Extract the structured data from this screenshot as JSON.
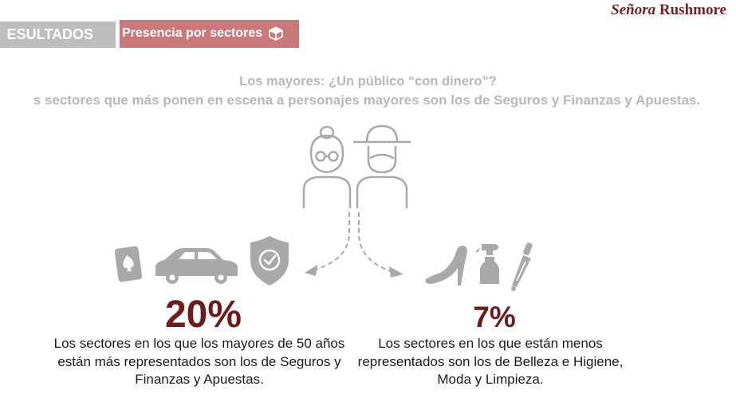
{
  "brand": {
    "part1": "Señora",
    "part2": " Rushmore"
  },
  "tabs": {
    "results_label": "ESULTADOS",
    "sectors_label": "Presencia por sectores"
  },
  "headline": {
    "title": "Los mayores: ¿Un público “con dinero”?",
    "subtitle": "s sectores que más ponen en escena a personajes mayores son los de Seguros y Finanzas y Apuestas."
  },
  "stats": {
    "left": {
      "value": "20%",
      "description": "Los sectores en los que los mayores de 50 años están más representados son los de Seguros y Finanzas y Apuestas."
    },
    "right": {
      "value": "7%",
      "description": "Los sectores en los que están menos representados son los de Belleza e Higiene, Moda y Limpieza."
    }
  },
  "icons": {
    "people": [
      "grandmother-icon",
      "grandfather-icon"
    ],
    "left": [
      "playing-card-icon",
      "car-icon",
      "shield-check-icon"
    ],
    "right": [
      "high-heel-shoe-icon",
      "spray-bottle-icon",
      "razor-icon"
    ],
    "tab": "box-icon"
  },
  "colors": {
    "brand": "#7a1f1f",
    "stat": "#6e1b1b",
    "tab_results": "#bdbdbd",
    "tab_sectors": "#c9797a",
    "icon_gray": "#a9a9a9"
  }
}
